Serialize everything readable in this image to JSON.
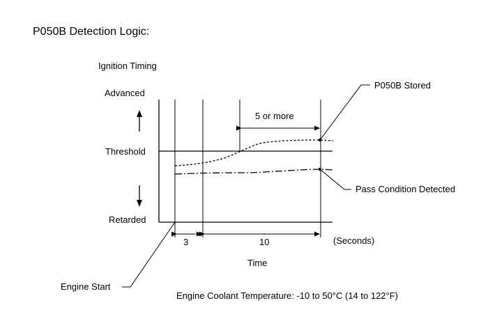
{
  "title": "P050B Detection Logic:",
  "y_axis": {
    "title": "Ignition Timing",
    "advanced_label": "Advanced",
    "threshold_label": "Threshold",
    "retarded_label": "Retarded"
  },
  "x_axis": {
    "title": "Time",
    "units_label": "(Seconds)",
    "interval_1": "3",
    "interval_2": "10",
    "duration_label": "5 or more"
  },
  "annotations": {
    "stored": "P050B Stored",
    "pass": "Pass Condition Detected",
    "engine_start": "Engine Start"
  },
  "footer": {
    "condition": "Engine Coolant Temperature: -10 to 50°C (14 to 122°F)"
  }
}
